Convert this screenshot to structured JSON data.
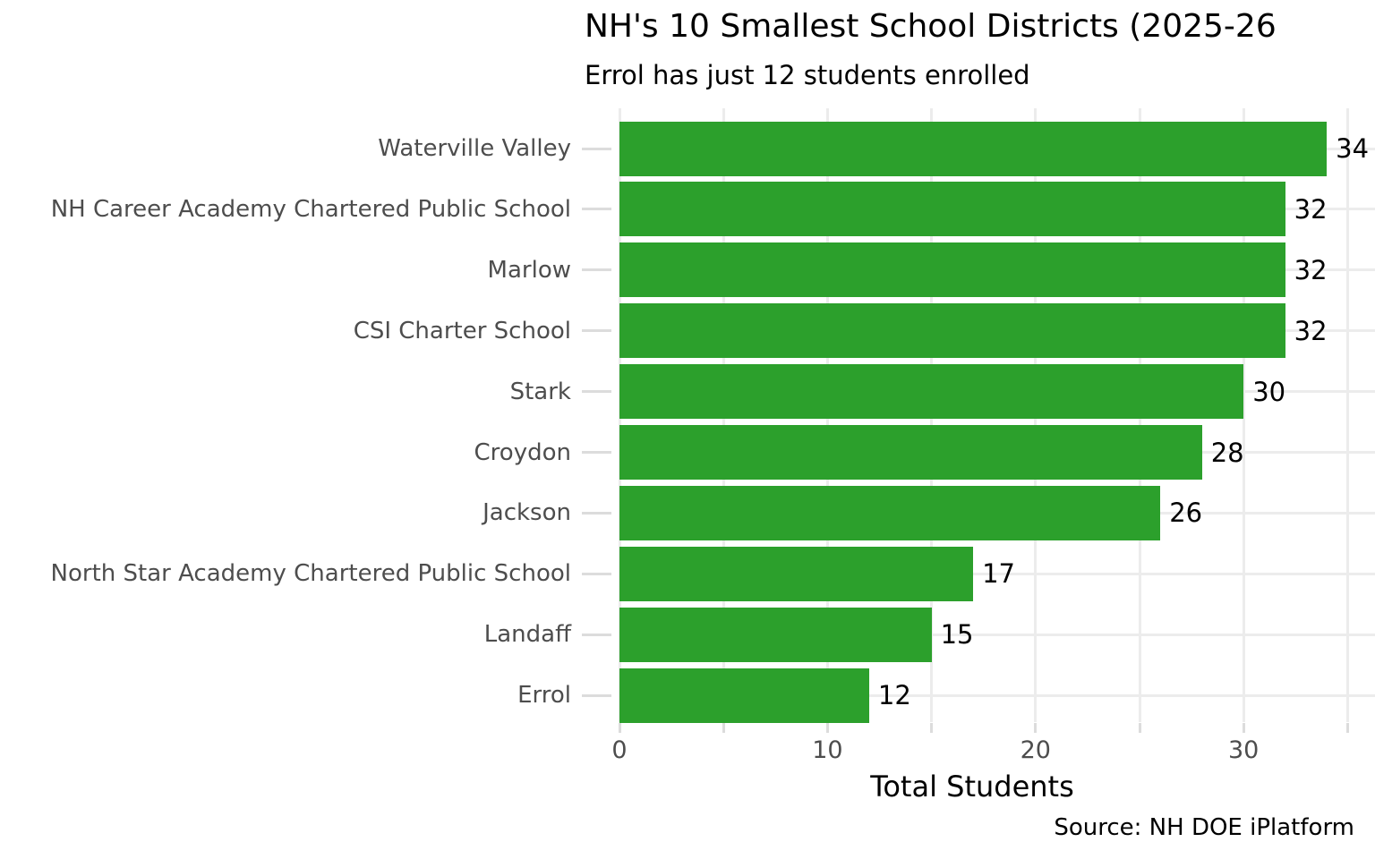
{
  "chart_data": {
    "type": "bar",
    "orientation": "horizontal",
    "title": "NH's 10 Smallest School Districts (2025-26",
    "subtitle": "Errol has just 12 students enrolled",
    "xlabel": "Total Students",
    "source": "Source: NH DOE iPlatform",
    "categories": [
      "Waterville Valley",
      "NH Career Academy Chartered Public School",
      "Marlow",
      "CSI Charter School",
      "Stark",
      "Croydon",
      "Jackson",
      "North Star Academy Chartered Public School",
      "Landaff",
      "Errol"
    ],
    "values": [
      34,
      32,
      32,
      32,
      30,
      28,
      26,
      17,
      15,
      12
    ],
    "value_labels": [
      "34",
      "32",
      "32",
      "32",
      "30",
      "28",
      "26",
      "17",
      "15",
      "12"
    ],
    "xlim": [
      0,
      36.3
    ],
    "xticks_labeled": [
      0,
      10,
      20,
      30
    ],
    "xticks_all": [
      0,
      5,
      10,
      15,
      20,
      25,
      30,
      35
    ],
    "grid": "major and minor vertical gridlines every 5, horizontal gridline at each category",
    "legend_position": "none",
    "colors": {
      "bar": "#2ca02c",
      "grid": "#ececec",
      "tick": "#dcdcdc",
      "axis_text": "#4d4d4d",
      "value_text": "#000000",
      "title_text": "#000000"
    }
  }
}
